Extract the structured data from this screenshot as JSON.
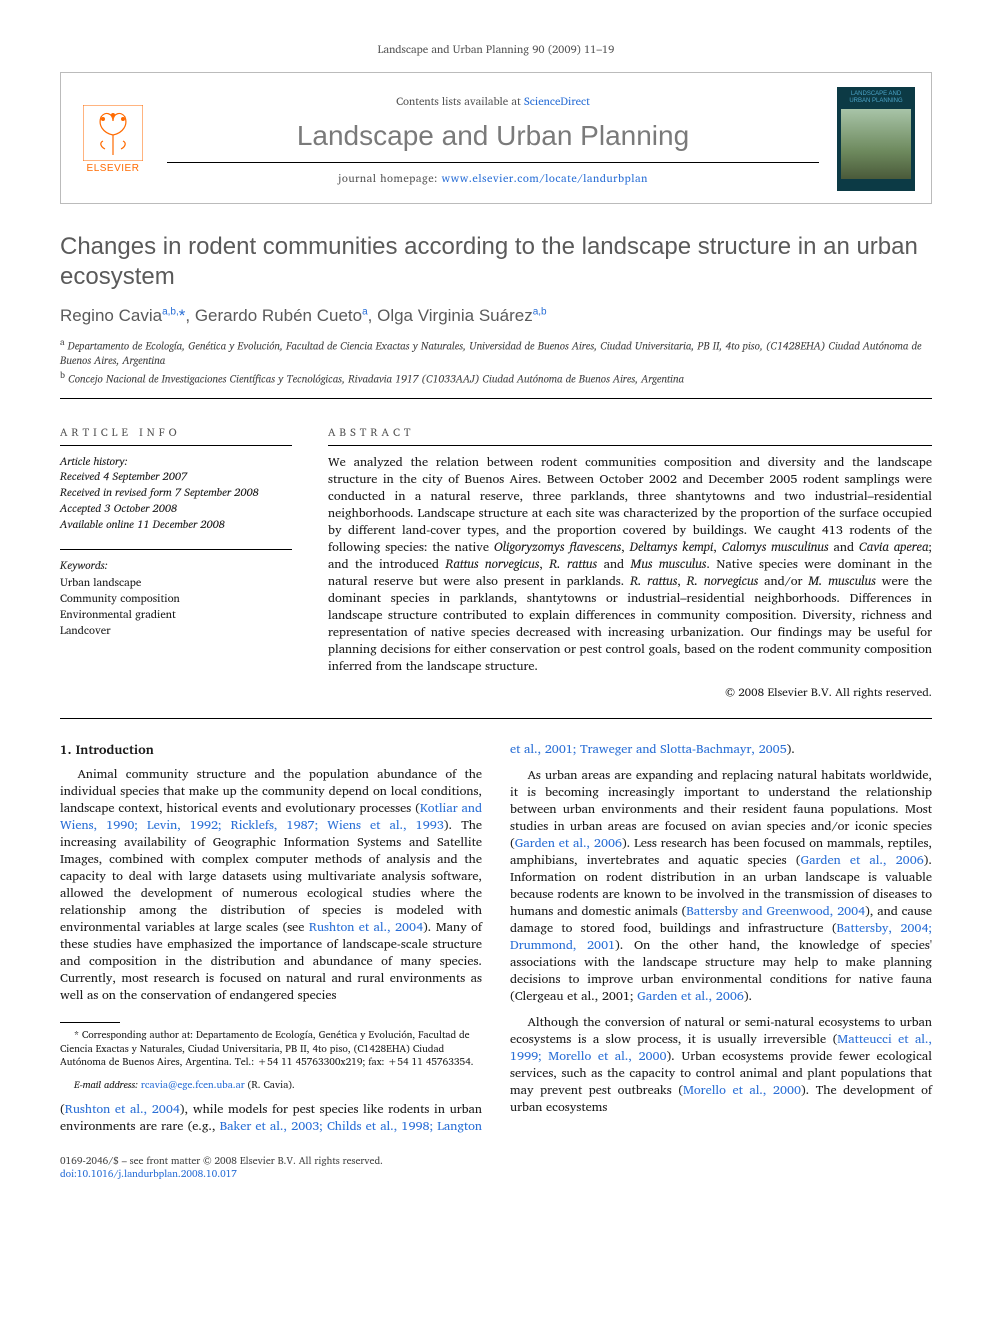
{
  "colors": {
    "link": "#2a6fd6",
    "gray_text": "#5a5a5a",
    "body_text": "#1a1a1a",
    "elsevier_orange": "#ff6a00",
    "cover_bg": "#0c3a45",
    "cover_title": "#4aa3c7"
  },
  "header": {
    "running": "Landscape and Urban Planning 90 (2009) 11–19",
    "contents_prefix": "Contents lists available at ",
    "contents_link": "ScienceDirect",
    "journal": "Landscape and Urban Planning",
    "homepage_prefix": "journal homepage: ",
    "homepage_url": "www.elsevier.com/locate/landurbplan",
    "publisher": "ELSEVIER",
    "cover_title": "LANDSCAPE AND URBAN PLANNING"
  },
  "article": {
    "title": "Changes in rodent communities according to the landscape structure in an urban ecosystem",
    "authors_html": "Regino Cavia<sup>a,b,</sup><span class=\"star\">*</span>, Gerardo Rubén Cueto<sup>a</sup>, Olga Virginia Suárez<sup>a,b</sup>",
    "affiliations": [
      "a Departamento de Ecología, Genética y Evolución, Facultad de Ciencia Exactas y Naturales, Universidad de Buenos Aires, Ciudad Universitaria, PB II, 4to piso, (C1428EHA) Ciudad Autónoma de Buenos Aires, Argentina",
      "b Concejo Nacional de Investigaciones Científicas y Tecnológicas, Rivadavia 1917 (C1033AAJ) Ciudad Autónoma de Buenos Aires, Argentina"
    ]
  },
  "info": {
    "label": "ARTICLE INFO",
    "history_label": "Article history:",
    "history": [
      "Received 4 September 2007",
      "Received in revised form 7 September 2008",
      "Accepted 3 October 2008",
      "Available online 11 December 2008"
    ],
    "keywords_label": "Keywords:",
    "keywords": [
      "Urban landscape",
      "Community composition",
      "Environmental gradient",
      "Landcover"
    ]
  },
  "abstract": {
    "label": "ABSTRACT",
    "text": "We analyzed the relation between rodent communities composition and diversity and the landscape structure in the city of Buenos Aires. Between October 2002 and December 2005 rodent samplings were conducted in a natural reserve, three parklands, three shantytowns and two industrial–residential neighborhoods. Landscape structure at each site was characterized by the proportion of the surface occupied by different land-cover types, and the proportion covered by buildings. We caught 413 rodents of the following species: the native Oligoryzomys flavescens, Deltamys kempi, Calomys musculinus and Cavia aperea; and the introduced Rattus norvegicus, R. rattus and Mus musculus. Native species were dominant in the natural reserve but were also present in parklands. R. rattus, R. norvegicus and/or M. musculus were the dominant species in parklands, shantytowns or industrial–residential neighborhoods. Differences in landscape structure contributed to explain differences in community composition. Diversity, richness and representation of native species decreased with increasing urbanization. Our findings may be useful for planning decisions for either conservation or pest control goals, based on the rodent community composition inferred from the landscape structure.",
    "copyright": "© 2008 Elsevier B.V. All rights reserved."
  },
  "body": {
    "section_num": "1.",
    "section_title": "Introduction",
    "p1": "Animal community structure and the population abundance of the individual species that make up the community depend on local conditions, landscape context, historical events and evolutionary processes (Kotliar and Wiens, 1990; Levin, 1992; Ricklefs, 1987; Wiens et al., 1993). The increasing availability of Geographic Information Systems and Satellite Images, combined with complex computer methods of analysis and the capacity to deal with large datasets using multivariate analysis software, allowed the development of numerous ecological studies where the relationship among the distribution of species is modeled with environmental variables at large scales (see Rushton et al., 2004). Many of these studies have emphasized the importance of landscape-scale structure and composition in the distribution and abundance of many species. Currently, most research is focused on natural and rural environments as well as on the conservation of endangered species",
    "p1_cont": "(Rushton et al., 2004), while models for pest species like rodents in urban environments are rare (e.g., Baker et al., 2003; Childs et al., 1998; Langton et al., 2001; Traweger and Slotta-Bachmayr, 2005).",
    "p2": "As urban areas are expanding and replacing natural habitats worldwide, it is becoming increasingly important to understand the relationship between urban environments and their resident fauna populations. Most studies in urban areas are focused on avian species and/or iconic species (Garden et al., 2006). Less research has been focused on mammals, reptiles, amphibians, invertebrates and aquatic species (Garden et al., 2006). Information on rodent distribution in an urban landscape is valuable because rodents are known to be involved in the transmission of diseases to humans and domestic animals (Battersby and Greenwood, 2004), and cause damage to stored food, buildings and infrastructure (Battersby, 2004; Drummond, 2001). On the other hand, the knowledge of species' associations with the landscape structure may help to make planning decisions to improve urban environmental conditions for native fauna (Clergeau et al., 2001; Garden et al., 2006).",
    "p3": "Although the conversion of natural or semi-natural ecosystems to urban ecosystems is a slow process, it is usually irreversible (Matteucci et al., 1999; Morello et al., 2000). Urban ecosystems provide fewer ecological services, such as the capacity to control animal and plant populations that may prevent pest outbreaks (Morello et al., 2000). The development of urban ecosystems",
    "citations_p1": [
      "Kotliar and Wiens, 1990; Levin, 1992; Ricklefs, 1987; Wiens et al., 1993",
      "Rushton et al., 2004"
    ],
    "citations_p1c": [
      "Rushton et al., 2004",
      "Baker et al., 2003; Childs et al., 1998; Langton et al., 2001; Traweger and Slotta-Bachmayr, 2005"
    ],
    "citations_p2": [
      "Garden et al., 2006",
      "Garden et al., 2006",
      "Battersby and Greenwood, 2004",
      "Battersby, 2004; Drummond, 2001",
      "Clergeau et al., 2001; Garden et al., 2006"
    ],
    "citations_p3": [
      "Matteucci et al., 1999; Morello et al., 2000",
      "Morello et al., 2000"
    ]
  },
  "footnote": {
    "corresponding": "* Corresponding author at: Departamento de Ecología, Genética y Evolución, Facultad de Ciencia Exactas y Naturales, Ciudad Universitaria, PB II, 4to piso, (C1428EHA) Ciudad Autónoma de Buenos Aires, Argentina. Tel.: +54 11 45763300x219; fax: +54 11 45763354.",
    "email_label": "E-mail address: ",
    "email": "rcavia@ege.fcen.uba.ar",
    "email_tail": " (R. Cavia)."
  },
  "footer": {
    "line1": "0169-2046/$ – see front matter © 2008 Elsevier B.V. All rights reserved.",
    "doi": "doi:10.1016/j.landurbplan.2008.10.017"
  }
}
